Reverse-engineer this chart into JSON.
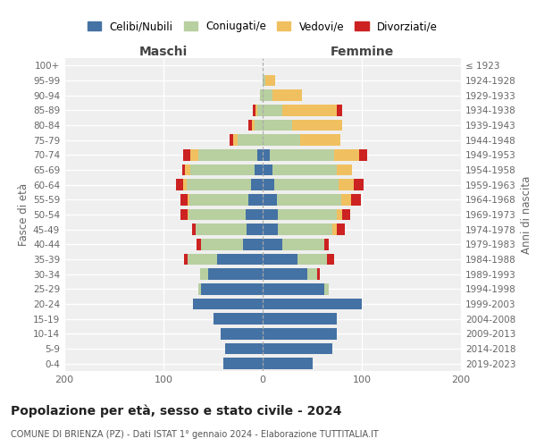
{
  "age_groups": [
    "0-4",
    "5-9",
    "10-14",
    "15-19",
    "20-24",
    "25-29",
    "30-34",
    "35-39",
    "40-44",
    "45-49",
    "50-54",
    "55-59",
    "60-64",
    "65-69",
    "70-74",
    "75-79",
    "80-84",
    "85-89",
    "90-94",
    "95-99",
    "100+"
  ],
  "birth_years": [
    "2019-2023",
    "2014-2018",
    "2009-2013",
    "2004-2008",
    "1999-2003",
    "1994-1998",
    "1989-1993",
    "1984-1988",
    "1979-1983",
    "1974-1978",
    "1969-1973",
    "1964-1968",
    "1959-1963",
    "1954-1958",
    "1949-1953",
    "1944-1948",
    "1939-1943",
    "1934-1938",
    "1929-1933",
    "1924-1928",
    "≤ 1923"
  ],
  "males": {
    "celibi": [
      40,
      38,
      42,
      50,
      70,
      62,
      55,
      46,
      20,
      16,
      17,
      14,
      12,
      8,
      5,
      0,
      0,
      0,
      0,
      0,
      0
    ],
    "coniugati": [
      0,
      0,
      0,
      0,
      0,
      3,
      8,
      30,
      42,
      52,
      58,
      60,
      65,
      65,
      60,
      25,
      8,
      5,
      3,
      0,
      0
    ],
    "vedovi": [
      0,
      0,
      0,
      0,
      0,
      0,
      0,
      0,
      0,
      0,
      1,
      2,
      3,
      5,
      8,
      5,
      3,
      2,
      0,
      0,
      0
    ],
    "divorziati": [
      0,
      0,
      0,
      0,
      0,
      0,
      0,
      3,
      5,
      3,
      7,
      7,
      7,
      3,
      7,
      3,
      3,
      3,
      0,
      0,
      0
    ]
  },
  "females": {
    "nubili": [
      50,
      70,
      75,
      75,
      100,
      62,
      45,
      35,
      20,
      15,
      15,
      14,
      12,
      10,
      7,
      0,
      0,
      0,
      0,
      0,
      0
    ],
    "coniugate": [
      0,
      0,
      0,
      0,
      0,
      5,
      10,
      30,
      42,
      55,
      60,
      65,
      65,
      65,
      65,
      38,
      30,
      20,
      10,
      3,
      0
    ],
    "vedove": [
      0,
      0,
      0,
      0,
      0,
      0,
      0,
      0,
      0,
      5,
      5,
      10,
      15,
      15,
      25,
      40,
      50,
      55,
      30,
      10,
      0
    ],
    "divorziate": [
      0,
      0,
      0,
      0,
      0,
      0,
      3,
      7,
      5,
      8,
      8,
      10,
      10,
      0,
      8,
      0,
      0,
      5,
      0,
      0,
      0
    ]
  },
  "colors": {
    "celibi": "#4472a4",
    "coniugati": "#b8cfa0",
    "vedovi": "#f0c060",
    "divorziati": "#cc2222"
  },
  "xlim": 200,
  "title": "Popolazione per età, sesso e stato civile - 2024",
  "subtitle": "COMUNE DI BRIENZA (PZ) - Dati ISTAT 1° gennaio 2024 - Elaborazione TUTTITALIA.IT",
  "ylabel_left": "Fasce di età",
  "ylabel_right": "Anni di nascita",
  "legend_labels": [
    "Celibi/Nubili",
    "Coniugati/e",
    "Vedovi/e",
    "Divorziati/e"
  ],
  "bg_color": "#efefef"
}
